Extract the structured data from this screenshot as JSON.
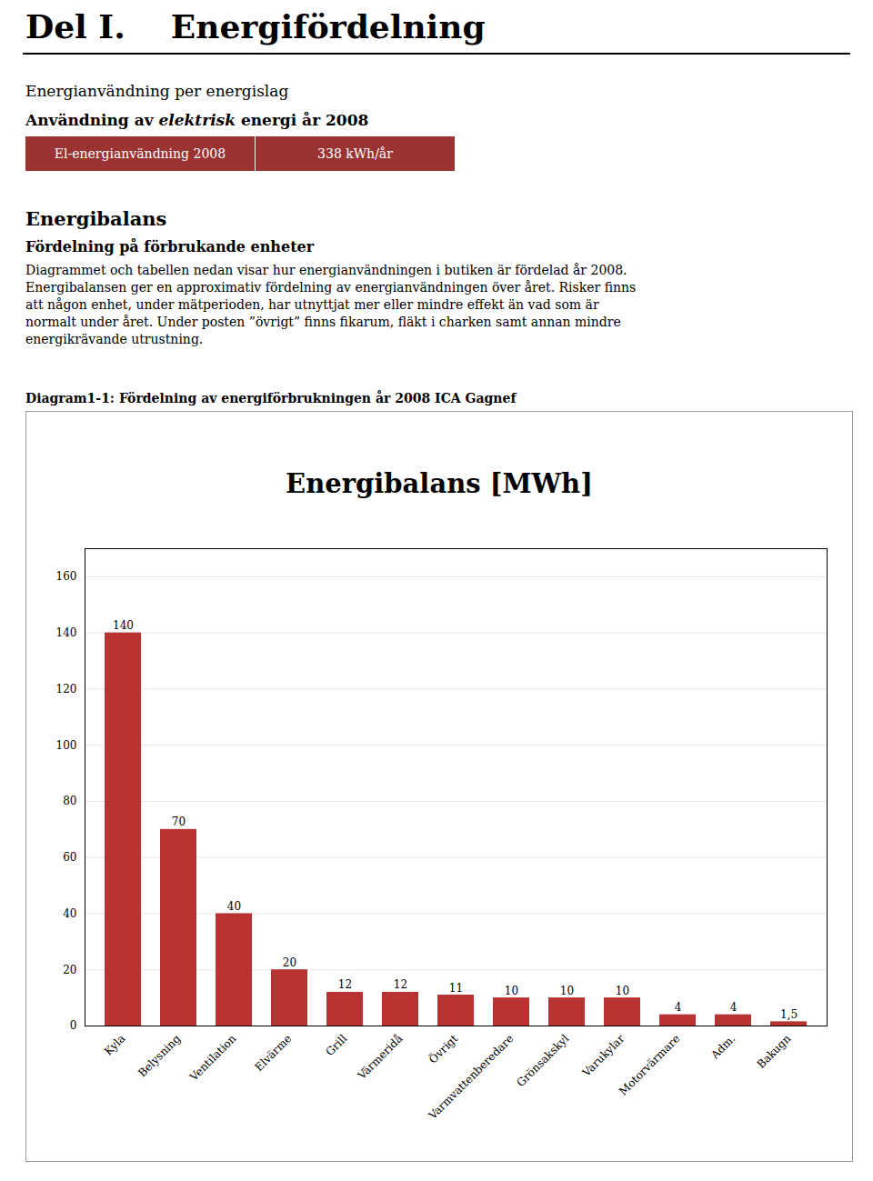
{
  "page_title": "Del I.    Energifördelning",
  "section_title": "Energianvändning per energislag",
  "subsection_bold1": "Användning av ",
  "subsection_italic": "elektrisk",
  "subsection_bold2": " energi år 2008",
  "table_col1": "El-energianvändning 2008",
  "table_col2": "338 kWh/år",
  "table_color": "#9B3333",
  "energibalans_title": "Energibalans",
  "fordelning_title": "Fördelning på förbrukande enheter",
  "body_lines": [
    "Diagrammet och tabellen nedan visar hur energianvändningen i butiken är fördelad år 2008.",
    "Energibalansen ger en approximativ fördelning av energianvändningen över året. Risker finns",
    "att någon enhet, under mätperioden, har utnyttjat mer eller mindre effekt än vad som är",
    "normalt under året. Under posten ”övrigt” finns fikarum, fläkt i charken samt annan mindre",
    "energikrävande utrustning."
  ],
  "diagram_label": "Diagram1-1: Fördelning av energiförbrukningen år 2008 ICA Gagnef",
  "chart_data": {
    "type": "bar",
    "title": "Energibalans [MWh]",
    "categories": [
      "Kyla",
      "Belysning",
      "Ventilation",
      "Elvärme",
      "Grill",
      "Värmeridå",
      "Övrigt",
      "Varmvattenberedare",
      "Grönsakskyl",
      "Varukylar",
      "Motorvärmare",
      "Adm.",
      "Bakugn"
    ],
    "values": [
      140,
      70,
      40,
      20,
      12,
      12,
      11,
      10,
      10,
      10,
      4,
      4,
      1.5
    ],
    "value_labels": [
      "140",
      "70",
      "40",
      "20",
      "12",
      "12",
      "11",
      "10",
      "10",
      "10",
      "4",
      "4",
      "1,5"
    ],
    "data_labels": true,
    "color": "#B83232",
    "ylim": [
      0,
      170
    ],
    "yticks": [
      0,
      20,
      40,
      60,
      80,
      100,
      120,
      140,
      160
    ],
    "grid": true
  }
}
